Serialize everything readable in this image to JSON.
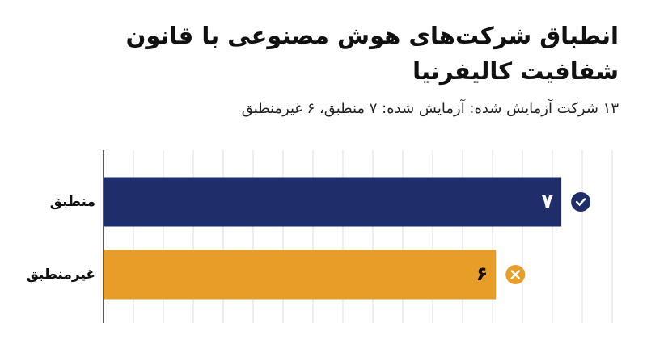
{
  "chart_data": {
    "type": "bar",
    "orientation": "horizontal",
    "title": "انطباق شرکت‌های هوش مصنوعی با قانون شفافیت کالیفرنیا",
    "subtitle": "۱۳ شرکت آزمایش شده:  آزمایش شده: ۷ منطبق، ۶ غیرمنطبق",
    "categories": [
      "منطبق",
      "غیرمنطبق"
    ],
    "values": [
      7,
      6
    ],
    "value_labels": [
      "۷",
      "۶"
    ],
    "colors": [
      "#1f2d6b",
      "#e89d28"
    ],
    "xlim": [
      0,
      8
    ],
    "grid": true
  }
}
